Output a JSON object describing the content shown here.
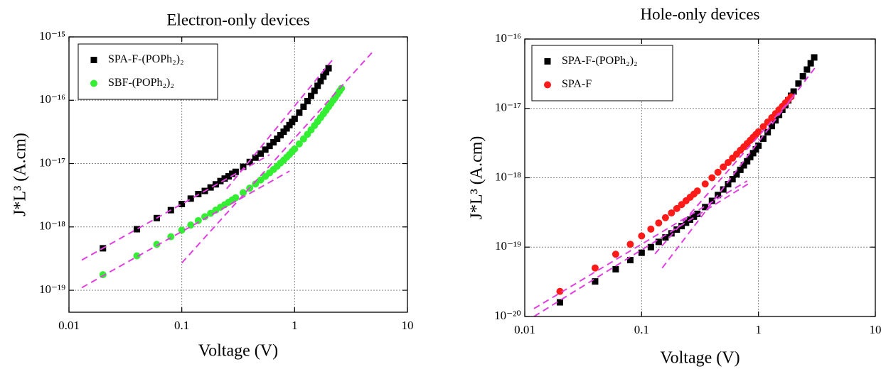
{
  "chart_data": [
    {
      "type": "scatter",
      "title": "Electron-only devices",
      "xlabel": "Voltage (V)",
      "ylabel": "J*L³ (A.cm)",
      "log_x": true,
      "log_y": true,
      "grid": true,
      "legend": "upper left",
      "xlim": [
        0.01,
        10
      ],
      "xticks": [
        0.01,
        0.1,
        1,
        10
      ],
      "ylim": [
        4.5e-20,
        1e-15
      ],
      "yticks": [
        {
          "value": 1e-19,
          "label": "10⁻¹⁹"
        },
        {
          "value": 1e-18,
          "label": "10⁻¹⁸"
        },
        {
          "value": 1e-17,
          "label": "10⁻¹⁷"
        },
        {
          "value": 1e-16,
          "label": "10⁻¹⁶"
        },
        {
          "value": 1e-15,
          "label": "10⁻¹⁵"
        }
      ],
      "series": [
        {
          "name": "SPA-F-(POPh₂)₂",
          "color": "#000000",
          "marker": "square",
          "x": [
            0.02,
            0.04,
            0.06,
            0.08,
            0.1,
            0.12,
            0.14,
            0.16,
            0.18,
            0.2,
            0.22,
            0.24,
            0.26,
            0.28,
            0.3,
            0.35,
            0.4,
            0.45,
            0.5,
            0.55,
            0.6,
            0.65,
            0.7,
            0.75,
            0.8,
            0.85,
            0.9,
            0.95,
            1.0,
            1.1,
            1.2,
            1.3,
            1.4,
            1.5,
            1.6,
            1.7,
            1.8,
            1.9,
            2.0
          ],
          "values": [
            4.6e-19,
            9.2e-19,
            1.38e-18,
            1.84e-18,
            2.3e-18,
            2.8e-18,
            3.3e-18,
            3.7e-18,
            4.2e-18,
            4.7e-18,
            5.3e-18,
            5.8e-18,
            6.3e-18,
            6.9e-18,
            7.4e-18,
            8.9e-18,
            1.06e-17,
            1.24e-17,
            1.44e-17,
            1.66e-17,
            1.9e-17,
            2.17e-17,
            2.47e-17,
            2.81e-17,
            3.18e-17,
            3.59e-17,
            4.05e-17,
            4.55e-17,
            5.1e-17,
            6.37e-17,
            7.9e-17,
            9.7e-17,
            1.17e-16,
            1.41e-16,
            1.69e-16,
            2e-16,
            2.36e-16,
            2.77e-16,
            3.2e-16
          ]
        },
        {
          "name": "SBF-(POPh₂)₂",
          "color": "#33ee33",
          "marker": "circle",
          "x": [
            0.02,
            0.04,
            0.06,
            0.08,
            0.1,
            0.12,
            0.14,
            0.16,
            0.18,
            0.2,
            0.22,
            0.24,
            0.26,
            0.28,
            0.3,
            0.35,
            0.4,
            0.45,
            0.5,
            0.55,
            0.6,
            0.65,
            0.7,
            0.75,
            0.8,
            0.85,
            0.9,
            0.95,
            1.0,
            1.1,
            1.2,
            1.3,
            1.4,
            1.5,
            1.6,
            1.7,
            1.8,
            1.9,
            2.0,
            2.1,
            2.2,
            2.3,
            2.4,
            2.5,
            2.6
          ],
          "values": [
            1.76e-19,
            3.5e-19,
            5.3e-19,
            7e-19,
            8.9e-19,
            1.07e-18,
            1.26e-18,
            1.45e-18,
            1.64e-18,
            1.84e-18,
            2.04e-18,
            2.24e-18,
            2.45e-18,
            2.67e-18,
            2.89e-18,
            3.47e-18,
            4.09e-18,
            4.77e-18,
            5.5e-18,
            6.29e-18,
            7.14e-18,
            8.07e-18,
            9.08e-18,
            1.02e-17,
            1.13e-17,
            1.26e-17,
            1.39e-17,
            1.55e-17,
            1.7e-17,
            2.05e-17,
            2.45e-17,
            2.9e-17,
            3.41e-17,
            3.98e-17,
            4.62e-17,
            5.32e-17,
            6.1e-17,
            6.94e-17,
            7.88e-17,
            8.9e-17,
            1e-16,
            1.12e-16,
            1.25e-16,
            1.39e-16,
            1.54e-16
          ]
        }
      ],
      "fits": [
        {
          "color": "#e040e0",
          "x": [
            0.013,
            0.6
          ],
          "values": [
            3e-19,
            1.38e-17
          ]
        },
        {
          "color": "#e040e0",
          "x": [
            0.013,
            0.9
          ],
          "values": [
            1.1e-19,
            7.6e-18
          ]
        },
        {
          "color": "#e040e0",
          "x": [
            0.25,
            2.2
          ],
          "values": [
            4e-18,
            4.5e-16
          ]
        },
        {
          "color": "#e040e0",
          "x": [
            0.1,
            5
          ],
          "values": [
            2.7e-19,
            6e-16
          ]
        }
      ]
    },
    {
      "type": "scatter",
      "title": "Hole-only devices",
      "xlabel": "Voltage (V)",
      "ylabel": "J*L³ (A.cm)",
      "log_x": true,
      "log_y": true,
      "grid": true,
      "legend": "upper left",
      "xlim": [
        0.01,
        10
      ],
      "xticks": [
        0.01,
        0.1,
        1,
        10
      ],
      "ylim": [
        1e-20,
        1e-16
      ],
      "yticks": [
        {
          "value": 1e-20,
          "label": "10⁻²⁰"
        },
        {
          "value": 1e-19,
          "label": "10⁻¹⁹"
        },
        {
          "value": 1e-18,
          "label": "10⁻¹⁸"
        },
        {
          "value": 1e-17,
          "label": "10⁻¹⁷"
        },
        {
          "value": 1e-16,
          "label": "10⁻¹⁶"
        }
      ],
      "series": [
        {
          "name": "SPA-F-(POPh₂)₂",
          "color": "#000000",
          "marker": "square",
          "x": [
            0.02,
            0.04,
            0.06,
            0.08,
            0.1,
            0.12,
            0.14,
            0.16,
            0.18,
            0.2,
            0.22,
            0.24,
            0.26,
            0.28,
            0.3,
            0.35,
            0.4,
            0.45,
            0.5,
            0.55,
            0.6,
            0.65,
            0.7,
            0.75,
            0.8,
            0.85,
            0.9,
            0.95,
            1.0,
            1.1,
            1.2,
            1.3,
            1.4,
            1.5,
            1.6,
            1.7,
            1.8,
            1.9,
            2.0,
            2.2,
            2.4,
            2.6,
            2.8,
            3.0
          ],
          "values": [
            1.6e-20,
            3.2e-20,
            4.8e-20,
            6.5e-20,
            8.3e-20,
            1e-19,
            1.19e-19,
            1.38e-19,
            1.58e-19,
            1.79e-19,
            2.01e-19,
            2.25e-19,
            2.49e-19,
            2.75e-19,
            3.02e-19,
            3.78e-19,
            4.65e-19,
            5.64e-19,
            6.78e-19,
            8.07e-19,
            9.52e-19,
            1.12e-18,
            1.3e-18,
            1.51e-18,
            1.73e-18,
            1.99e-18,
            2.26e-18,
            2.57e-18,
            2.9e-18,
            3.66e-18,
            4.54e-18,
            5.56e-18,
            6.73e-18,
            8.06e-18,
            9.57e-18,
            1.12e-17,
            1.31e-17,
            1.52e-17,
            1.75e-17,
            2.28e-17,
            2.9e-17,
            3.63e-17,
            4.47e-17,
            5.43e-17
          ]
        },
        {
          "name": "SPA-F",
          "color": "#ff1a1a",
          "marker": "circle",
          "x": [
            0.02,
            0.04,
            0.06,
            0.08,
            0.1,
            0.12,
            0.14,
            0.16,
            0.18,
            0.2,
            0.22,
            0.24,
            0.26,
            0.28,
            0.3,
            0.35,
            0.4,
            0.45,
            0.5,
            0.55,
            0.6,
            0.65,
            0.7,
            0.75,
            0.8,
            0.85,
            0.9,
            0.95,
            1.0,
            1.1,
            1.2,
            1.3,
            1.4,
            1.5,
            1.6,
            1.7,
            1.8,
            1.9
          ],
          "values": [
            2.3e-20,
            5e-20,
            7.9e-20,
            1.1e-19,
            1.45e-19,
            1.82e-19,
            2.23e-19,
            2.66e-19,
            3.11e-19,
            3.6e-19,
            4.11e-19,
            4.66e-19,
            5.23e-19,
            5.82e-19,
            6.45e-19,
            8.14e-19,
            1e-18,
            1.2e-18,
            1.43e-18,
            1.66e-18,
            1.92e-18,
            2.19e-18,
            2.49e-18,
            2.79e-18,
            3.12e-18,
            3.46e-18,
            3.83e-18,
            4.2e-18,
            4.6e-18,
            5.45e-18,
            6.36e-18,
            7.35e-18,
            8.4e-18,
            9.53e-18,
            1.07e-17,
            1.2e-17,
            1.33e-17,
            1.47e-17
          ]
        }
      ],
      "fits": [
        {
          "color": "#e040e0",
          "x": [
            0.012,
            0.85
          ],
          "values": [
            1e-20,
            8.5e-19
          ]
        },
        {
          "color": "#e040e0",
          "x": [
            0.012,
            0.8
          ],
          "values": [
            1.3e-20,
            9e-19
          ]
        },
        {
          "color": "#e040e0",
          "x": [
            0.15,
            3.1
          ],
          "values": [
            5e-20,
            4e-17
          ]
        },
        {
          "color": "#e040e0",
          "x": [
            0.13,
            2.0
          ],
          "values": [
            8e-20,
            1.5e-17
          ]
        }
      ]
    }
  ]
}
